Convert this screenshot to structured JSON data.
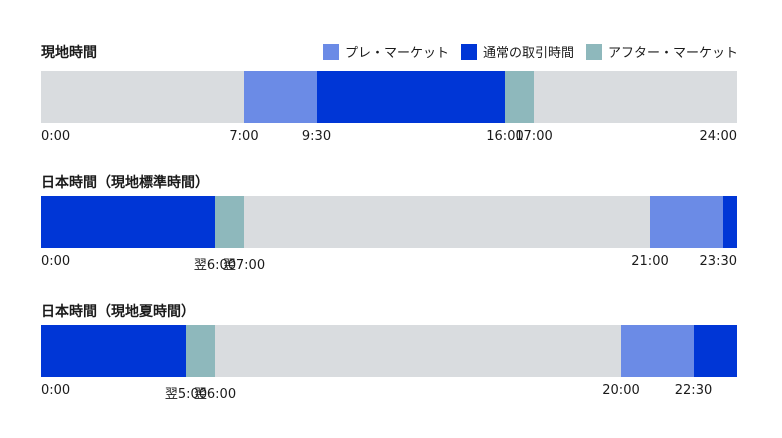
{
  "colors": {
    "pre": "#6b8be6",
    "regular": "#0036d6",
    "after": "#8eb8bc",
    "closed": "#d9dcdf"
  },
  "legend": [
    {
      "key": "pre",
      "label": "プレ・マーケット"
    },
    {
      "key": "regular",
      "label": "通常の取引時間"
    },
    {
      "key": "after",
      "label": "アフター・マーケット"
    }
  ],
  "chart_data": [
    {
      "type": "bar",
      "title": "現地時間",
      "x_range_hours": [
        0,
        24
      ],
      "segments": [
        {
          "key": "pre",
          "start": 7,
          "end": 9.5
        },
        {
          "key": "regular",
          "start": 9.5,
          "end": 16
        },
        {
          "key": "after",
          "start": 16,
          "end": 17
        }
      ],
      "ticks": [
        {
          "value": 0,
          "label": "0:00"
        },
        {
          "value": 7,
          "label": "7:00"
        },
        {
          "value": 9.5,
          "label": "9:30"
        },
        {
          "value": 16,
          "label": "16:00"
        },
        {
          "value": 17,
          "label": "17:00"
        },
        {
          "value": 24,
          "label": "24:00"
        }
      ]
    },
    {
      "type": "bar",
      "title": "日本時間（現地標準時間）",
      "x_range_hours": [
        0,
        24
      ],
      "segments": [
        {
          "key": "regular",
          "start": 0,
          "end": 6
        },
        {
          "key": "after",
          "start": 6,
          "end": 7
        },
        {
          "key": "pre",
          "start": 21,
          "end": 23.5
        },
        {
          "key": "regular",
          "start": 23.5,
          "end": 24
        }
      ],
      "ticks": [
        {
          "value": 0,
          "label": "0:00"
        },
        {
          "value": 6,
          "label": "翌6:00"
        },
        {
          "value": 7,
          "label": "翌7:00"
        },
        {
          "value": 21,
          "label": "21:00"
        },
        {
          "value": 23.5,
          "label": "23:30"
        }
      ]
    },
    {
      "type": "bar",
      "title": "日本時間（現地夏時間）",
      "x_range_hours": [
        0,
        24
      ],
      "segments": [
        {
          "key": "regular",
          "start": 0,
          "end": 5
        },
        {
          "key": "after",
          "start": 5,
          "end": 6
        },
        {
          "key": "pre",
          "start": 20,
          "end": 22.5
        },
        {
          "key": "regular",
          "start": 22.5,
          "end": 24
        }
      ],
      "ticks": [
        {
          "value": 0,
          "label": "0:00"
        },
        {
          "value": 5,
          "label": "翌5:00"
        },
        {
          "value": 6,
          "label": "翌6:00"
        },
        {
          "value": 20,
          "label": "20:00"
        },
        {
          "value": 22.5,
          "label": "22:30"
        }
      ]
    }
  ]
}
